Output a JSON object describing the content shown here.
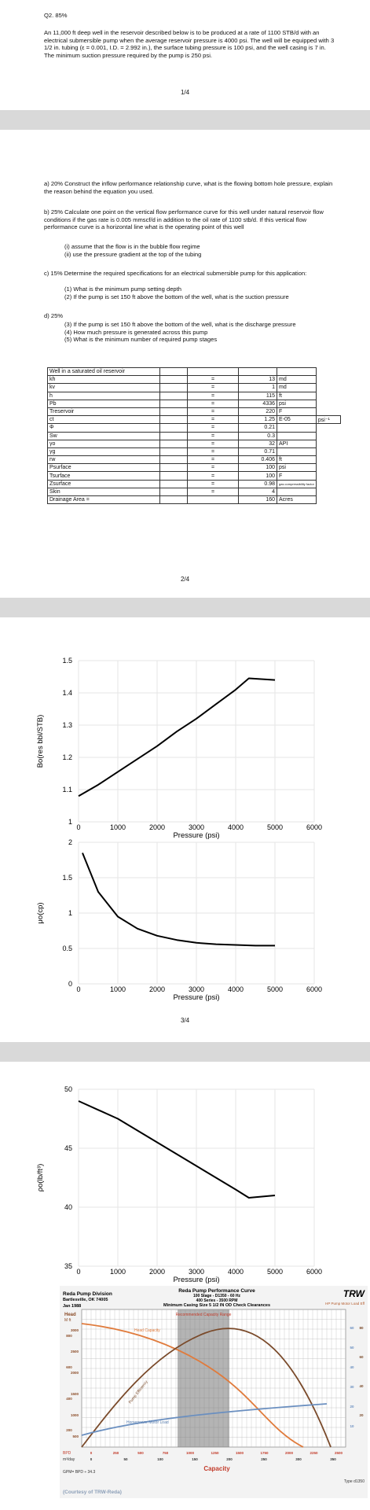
{
  "page1": {
    "heading": "Q2. 85%",
    "intro": "An 11,000 ft deep well in the reservoir described below is to be produced at a rate of 1100 STB/d with an electrical submersible pump when the average reservoir pressure is 4000 psi. The well will be equipped with 3 1/2 in. tubing (ε = 0.001, I.D. = 2.992 in.), the surface tubing pressure is 100 psi, and the well casing is 7 in. The minimum suction pressure required by the pump is 250 psi.",
    "page_number": "1/4"
  },
  "page2": {
    "qa": "a) 20% Construct the inflow performance relationship curve, what is the flowing bottom hole pressure, explain the reason behind the equation you used.",
    "qb": "b) 25% Calculate one point on the vertical flow performance curve for this well under natural reservoir flow conditions if the gas rate is 0.005 mmscf/d in addition to the oil rate of 1100 stb/d. If this vertical flow performance curve is a horizontal line what is the operating point of this well",
    "qb_items": [
      "(i) assume that the flow is in the bubble flow regime",
      "(ii) use the pressure gradient at the top of the tubing"
    ],
    "qc": "c) 15% Determine the required specifications for an electrical submersible pump for this application:",
    "qc_items": [
      "(1) What is the minimum pump setting depth",
      "(2) If the pump is set 150 ft above the bottom of the well, what is the suction pressure"
    ],
    "qd": "d) 25%",
    "qd_items": [
      "(3) If the pump is set 150 ft above the bottom of the well, what is the discharge pressure",
      "(4) How much pressure is generated across this pump",
      "(5) What is the minimum number of required pump stages"
    ],
    "table_title": "Well in a saturated oil reservoir",
    "table_rows": [
      {
        "label": "kh",
        "eq": "=",
        "value": "13",
        "unit": "md",
        "extra": ""
      },
      {
        "label": "kv",
        "eq": "=",
        "value": "1",
        "unit": "md",
        "extra": ""
      },
      {
        "label": "h",
        "eq": "=",
        "value": "115",
        "unit": "ft",
        "extra": ""
      },
      {
        "label": "Pb",
        "eq": "=",
        "value": "4336",
        "unit": "psi",
        "extra": ""
      },
      {
        "label": "Treservoir",
        "eq": "=",
        "value": "220",
        "unit": "F",
        "extra": ""
      },
      {
        "label": "ct",
        "eq": "=",
        "value": "1.25",
        "unit": "E-05",
        "extra": "psi⁻¹"
      },
      {
        "label": "Φ",
        "eq": "=",
        "value": "0.21",
        "unit": "",
        "extra": ""
      },
      {
        "label": "Sw",
        "eq": "=",
        "value": "0.3",
        "unit": "",
        "extra": ""
      },
      {
        "label": "γo",
        "eq": "=",
        "value": "32",
        "unit": "API",
        "extra": ""
      },
      {
        "label": "γg",
        "eq": "=",
        "value": "0.71",
        "unit": "",
        "extra": ""
      },
      {
        "label": "rw",
        "eq": "=",
        "value": "0.406",
        "unit": "ft",
        "extra": ""
      },
      {
        "label": "Psurface",
        "eq": "=",
        "value": "100",
        "unit": "psi",
        "extra": ""
      },
      {
        "label": "Tsurface",
        "eq": "=",
        "value": "100",
        "unit": "F",
        "extra": ""
      },
      {
        "label": "Zsurface",
        "eq": "=",
        "value": "0.98",
        "unit": "gas compressibility factor",
        "extra": ""
      },
      {
        "label": "Skin",
        "eq": "=",
        "value": "4",
        "unit": "",
        "extra": ""
      },
      {
        "label": "Drainage Area =",
        "eq": "",
        "value": "160",
        "unit": "Acres",
        "extra": ""
      }
    ],
    "page_number": "2/4"
  },
  "page3": {
    "page_number": "3/4"
  },
  "chart_data": [
    {
      "type": "line",
      "ylabel": "Bo(res bbl/STB)",
      "xlabel": "Pressure (psi)",
      "xlim": [
        0,
        6000
      ],
      "ylim": [
        1,
        1.5
      ],
      "xticks": [
        "0",
        "1000",
        "2000",
        "3000",
        "4000",
        "5000",
        "6000"
      ],
      "yticks": [
        "1",
        "1.1",
        "1.2",
        "1.3",
        "1.4",
        "1.5"
      ],
      "x": [
        0,
        500,
        1000,
        1500,
        2000,
        2500,
        3000,
        3500,
        4000,
        4336,
        5000
      ],
      "y": [
        1.08,
        1.115,
        1.155,
        1.195,
        1.235,
        1.28,
        1.32,
        1.365,
        1.41,
        1.445,
        1.44
      ]
    },
    {
      "type": "line",
      "ylabel": "μo(cp)",
      "xlabel": "Pressure (psi)",
      "xlim": [
        0,
        6000
      ],
      "ylim": [
        0,
        2
      ],
      "xticks": [
        "0",
        "1000",
        "2000",
        "3000",
        "4000",
        "5000",
        "6000"
      ],
      "yticks": [
        "0",
        "0.5",
        "1",
        "1.5",
        "2"
      ],
      "x": [
        100,
        500,
        1000,
        1500,
        2000,
        2500,
        3000,
        3500,
        4000,
        4500,
        5000
      ],
      "y": [
        1.85,
        1.3,
        0.95,
        0.78,
        0.68,
        0.62,
        0.58,
        0.56,
        0.55,
        0.54,
        0.54
      ]
    },
    {
      "type": "line",
      "ylabel": "ρo(lb/ft³)",
      "xlabel": "Pressure (psi)",
      "xlim": [
        0,
        6000
      ],
      "ylim": [
        35,
        50
      ],
      "xticks": [
        "0",
        "1000",
        "2000",
        "3000",
        "4000",
        "5000",
        "6000"
      ],
      "yticks": [
        "35",
        "40",
        "45",
        "50"
      ],
      "x": [
        0,
        1000,
        2000,
        3000,
        4000,
        4336,
        5000
      ],
      "y": [
        49,
        47.5,
        45.5,
        43.5,
        41.5,
        40.8,
        41
      ]
    }
  ],
  "reda": {
    "company": "Reda Pump Division",
    "city": "Bartlesville, OK 74005",
    "date": "Jan 1988",
    "title": "Reda Pump Performance Curve",
    "sub1": "100 Stage - D1350 - 60 Hz",
    "sub2": "400 Series - 3500 RPM",
    "sub3": "Minimum Casing Size 5 1/2 IN OD Check Clearances",
    "logo": "TRW",
    "head_label": "Head",
    "head_units": "M  ft",
    "recommended": "Recommended Capacity Range",
    "head_capacity": "Head Capacity",
    "pump_efficiency": "Pump Efficiency",
    "hp_motor": "Horsepower Motor Load",
    "right_label": "HP Pump Motor Load Eff",
    "capacity": "Capacity",
    "bpd_label": "BPD",
    "m3_label": "m³/day",
    "gpm": "GPM= BPD ÷ 34.3",
    "courtesy": "(Courtesy of TRW-Reda)",
    "type": "Type d1350",
    "bpd_ticks": [
      "0",
      "250",
      "500",
      "750",
      "1000",
      "1250",
      "1500",
      "1750",
      "2000",
      "2250",
      "2500"
    ],
    "m3_ticks": [
      "0",
      "50",
      "100",
      "150",
      "200",
      "250",
      "300",
      "350"
    ],
    "m_ticks": [
      "800",
      "600",
      "400",
      "200"
    ],
    "ft_ticks": [
      "3000",
      "2500",
      "2000",
      "1500",
      "1000",
      "500"
    ],
    "hp_ticks": [
      "60",
      "50",
      "40",
      "30",
      "20",
      "10"
    ],
    "eff_ticks": [
      "80",
      "60",
      "40",
      "20"
    ],
    "colors": {
      "head": "#e07b3c",
      "efficiency": "#7a4a2a",
      "motor": "#6a8fc0",
      "band": "#777777"
    }
  }
}
